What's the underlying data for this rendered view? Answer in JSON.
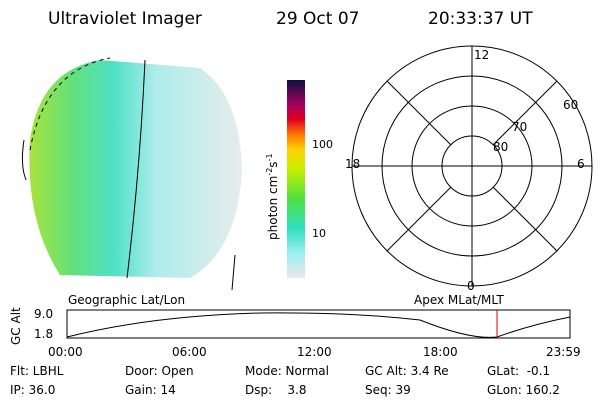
{
  "header": {
    "title": "Ultraviolet Imager",
    "date": "29 Oct 07",
    "time": "20:33:37 UT"
  },
  "image": {
    "label": "Geographic Lat/Lon"
  },
  "colorbar": {
    "label": "photon cm",
    "exp1": "-2",
    "unit2": "s",
    "exp2": "-1",
    "ticks": [
      "100",
      "10"
    ]
  },
  "polar": {
    "label": "Apex MLat/MLT",
    "mlt": [
      "12",
      "18",
      "6",
      "0"
    ],
    "lat": [
      "60",
      "70",
      "80"
    ]
  },
  "timeline": {
    "ylabel": "GC Alt",
    "yticks": [
      "9.0",
      "1.8"
    ],
    "xticks": [
      "00:00",
      "06:00",
      "12:00",
      "18:00",
      "23:59"
    ]
  },
  "info": [
    [
      "Flt: LBHL",
      "Door: Open",
      "Mode: Normal",
      "GC Alt: 3.4 Re",
      "GLat:  -0.1"
    ],
    [
      "IP: 36.0",
      "Gain: 14",
      "Dsp:    3.8",
      "Seq: 39",
      "GLon: 160.2"
    ]
  ]
}
